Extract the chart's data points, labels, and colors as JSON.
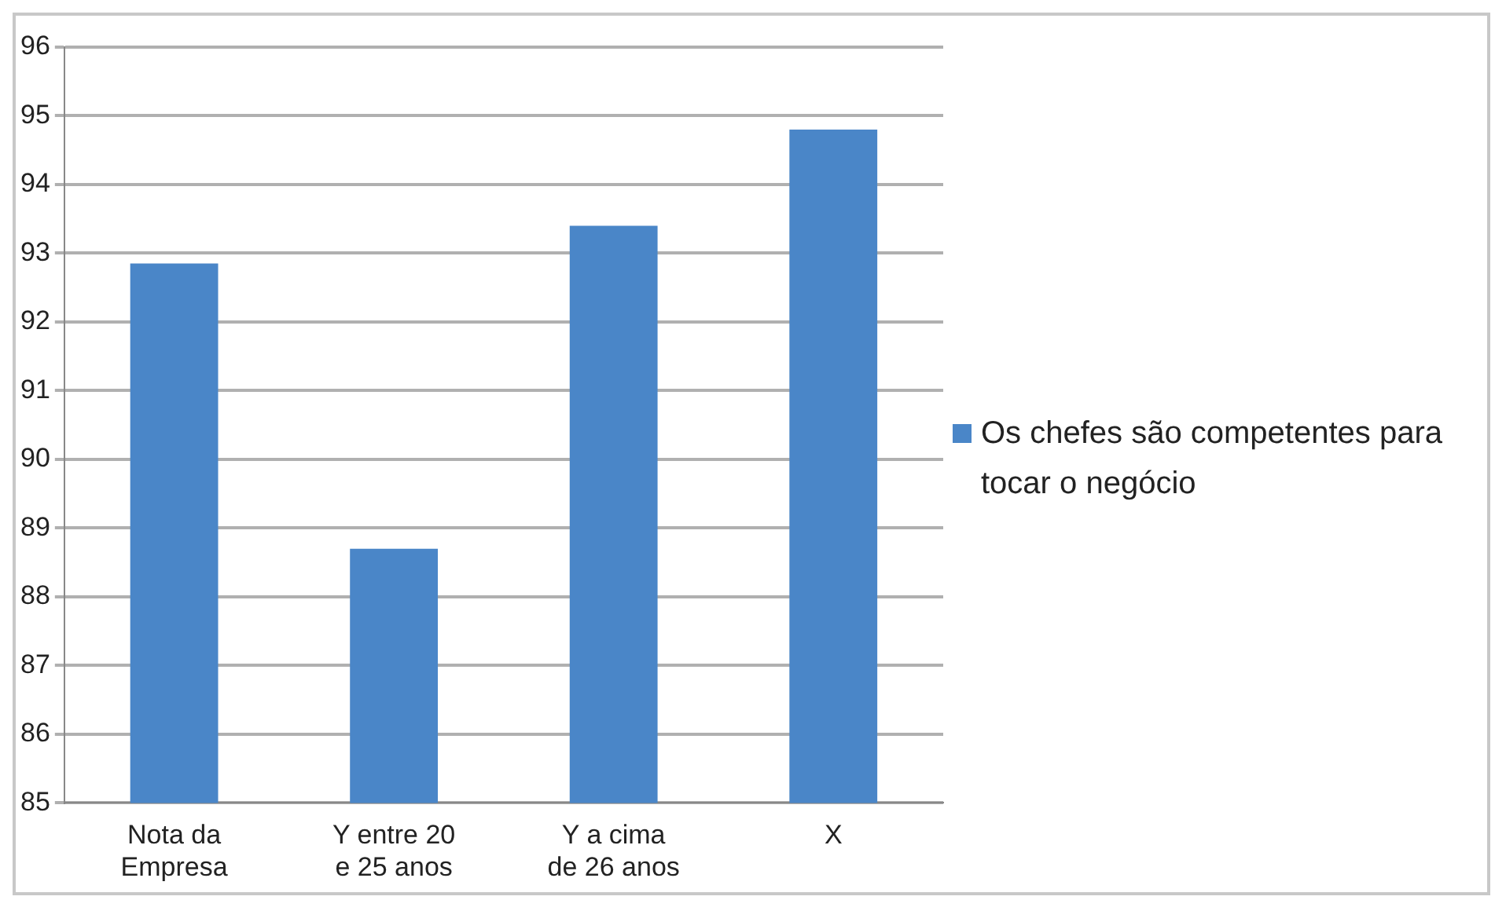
{
  "chart_data": {
    "type": "bar",
    "categories": [
      "Nota da Empresa",
      "Y entre 20 e 25 anos",
      "Y a cima de 26 anos",
      "X"
    ],
    "series": [
      {
        "name": "Os chefes são competentes para tocar o negócio",
        "color": "#4a86c8",
        "values": [
          92.85,
          88.7,
          93.4,
          94.8
        ]
      }
    ],
    "ylim": [
      85,
      96
    ],
    "yticks": [
      85,
      86,
      87,
      88,
      89,
      90,
      91,
      92,
      93,
      94,
      95,
      96
    ],
    "grid": "y",
    "legend": "right"
  }
}
